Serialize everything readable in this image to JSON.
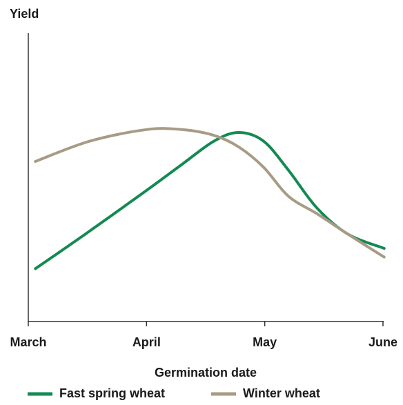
{
  "chart_data": {
    "type": "line",
    "y_label": "Yield",
    "x_label": "Germination date",
    "xlim": [
      0,
      3
    ],
    "xticks": [
      {
        "value": 0,
        "label": "March"
      },
      {
        "value": 1,
        "label": "April"
      },
      {
        "value": 2,
        "label": "May"
      },
      {
        "value": 3,
        "label": "June"
      }
    ],
    "ylim": [
      0,
      100
    ],
    "x": [
      0.06,
      0.52,
      1.0,
      1.3,
      1.57,
      1.78,
      1.99,
      2.2,
      2.44,
      2.7,
      3.01
    ],
    "series": [
      {
        "name": "Fast spring wheat",
        "color": "#138a52",
        "values": [
          18,
          31,
          45,
          54,
          62,
          65,
          62,
          52,
          39,
          30,
          25
        ]
      },
      {
        "name": "Winter wheat",
        "color": "#a89b85",
        "values": [
          55,
          62,
          66,
          66,
          64,
          60,
          53,
          43,
          37,
          30,
          22
        ]
      }
    ],
    "legend": "bottom"
  }
}
